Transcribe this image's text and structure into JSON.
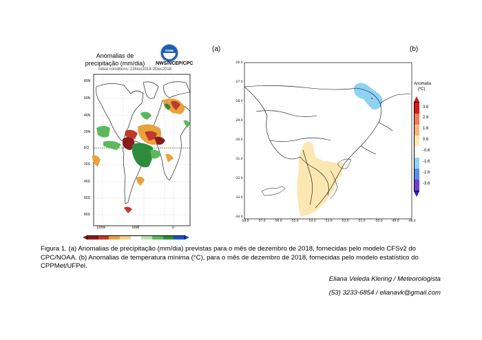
{
  "panel_a": {
    "label": "(a)",
    "title_line1": "Anomalias de",
    "title_line2": "precipitação (mm/dia)",
    "agency": "NWS/NCEP/CPC",
    "logo_text": "noaa",
    "initial_conditions": "Initial conditions: 23Nov2018-2Dec2018",
    "lat_labels": [
      "80N",
      "60N",
      "40N",
      "20N",
      "EQ",
      "20S",
      "40S",
      "60S",
      "80S"
    ],
    "lon_labels": [
      "120W",
      "60W",
      "0"
    ],
    "colorbar_colors": [
      "#8b1a1a",
      "#c0392b",
      "#e8a33d",
      "#f5d28a",
      "#ffffff",
      "#b9e3a8",
      "#5cb85c",
      "#2e8b3d",
      "#1e50c8"
    ]
  },
  "panel_b": {
    "label": "(b)",
    "y_ticks": [
      "-26.0",
      "-27.0",
      "-28.0",
      "-29.0",
      "-30.0",
      "-31.0",
      "-32.0",
      "-33.0",
      "-34.0"
    ],
    "x_ticks": [
      "-58.0",
      "-57.0",
      "-56.0",
      "-55.0",
      "-54.0",
      "-53.0",
      "-52.0",
      "-51.0",
      "-50.0",
      "-49.0",
      "-48.0"
    ],
    "legend_title": "Anomalia",
    "legend_unit": "(ºC)",
    "legend_labels": [
      "3.6",
      "2.6",
      "1.6",
      "0.6",
      "-0.6",
      "-1.6",
      "-2.6",
      "-3.6"
    ],
    "legend_colors": [
      "#d7191c",
      "#f07a5a",
      "#fab27a",
      "#fde9b0",
      "#ffffff",
      "#8fd3f4",
      "#5b8df0",
      "#6a3ed8"
    ]
  },
  "caption": "Figura 1. (a) Anomalias de precipitação (mm/dia) previstas para o mês de dezembro de 2018, fornecidas pelo modelo CFSv2 do CPC/NOAA. (b) Anomalias de temperatura mínima (°C), para o mês de dezembro de 2018, fornecidas pelo modelo estatístico do CPPMet/UFPel.",
  "author": "Eliana Veleda Klering / Meteorologista",
  "contact": "(53) 3233-6854 / elianavk@gmail.com"
}
